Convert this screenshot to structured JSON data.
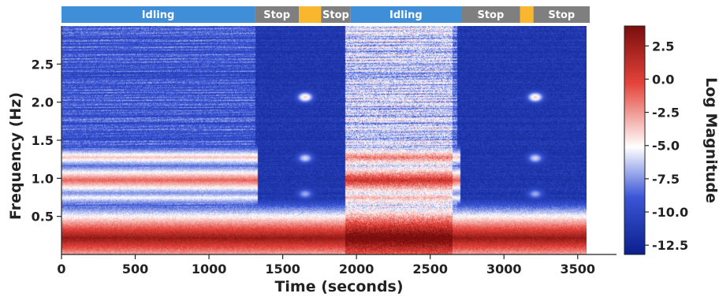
{
  "chart_data": {
    "type": "heatmap",
    "title": "",
    "xlabel": "Time (seconds)",
    "ylabel": "Frequency (Hz)",
    "xlim": [
      0,
      3600
    ],
    "ylim": [
      0,
      3.0
    ],
    "x_ticks": [
      0,
      500,
      1000,
      1500,
      2000,
      2500,
      3000,
      3500
    ],
    "y_ticks": [
      0.5,
      1.0,
      1.5,
      2.0,
      2.5
    ],
    "grid": false,
    "colorbar": {
      "label": "Log Magnitude",
      "range": [
        -13.2,
        4.0
      ],
      "ticks": [
        2.5,
        0.0,
        -2.5,
        -5.0,
        -7.5,
        -10.0,
        -12.5
      ],
      "colormap": [
        "#0b1f8c",
        "#3a55d6",
        "#ffffff",
        "#e4433a",
        "#7a0d0d"
      ]
    },
    "state_bar": [
      {
        "label": "Idling",
        "start": 0,
        "end": 1310,
        "color": "#3f8fd8"
      },
      {
        "label": "Stop",
        "start": 1310,
        "end": 1610,
        "color": "#7f7f7f"
      },
      {
        "label": "",
        "start": 1610,
        "end": 1760,
        "color": "#f8b72e"
      },
      {
        "label": "Stop",
        "start": 1760,
        "end": 1960,
        "color": "#7f7f7f"
      },
      {
        "label": "Idling",
        "start": 1960,
        "end": 2710,
        "color": "#3f8fd8"
      },
      {
        "label": "Stop",
        "start": 2710,
        "end": 3110,
        "color": "#7f7f7f"
      },
      {
        "label": "",
        "start": 3110,
        "end": 3200,
        "color": "#f8b72e"
      },
      {
        "label": "Stop",
        "start": 3200,
        "end": 3600,
        "color": "#7f7f7f"
      }
    ],
    "bands": [
      {
        "freq": 0.22,
        "level": 3.0
      },
      {
        "freq": 0.98,
        "level": -1.0
      },
      {
        "freq": 1.28,
        "level": -3.5
      },
      {
        "freq": 0.75,
        "level": -5.0
      }
    ]
  }
}
